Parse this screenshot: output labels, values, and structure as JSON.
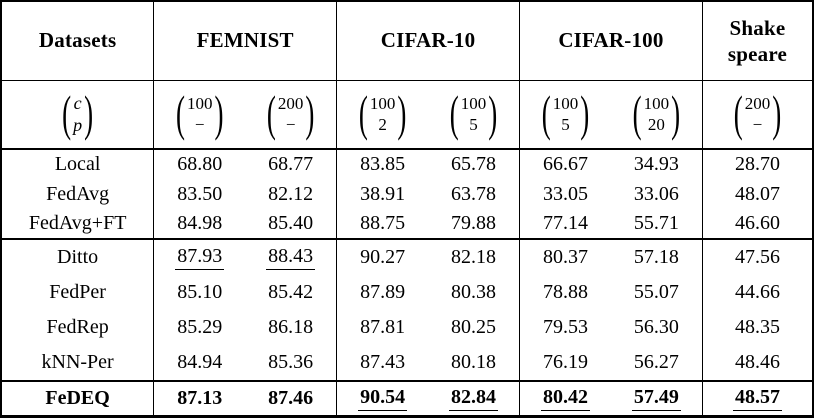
{
  "meta": {
    "background": "#ffffff",
    "text_color": "#000000",
    "border_color": "#000000"
  },
  "table": {
    "corner_label": "Datasets",
    "header_groups": [
      {
        "label": "FEMNIST",
        "span": 2
      },
      {
        "label": "CIFAR-10",
        "span": 2
      },
      {
        "label": "CIFAR-100",
        "span": 2
      },
      {
        "label": "Shake\nspeare",
        "span": 1
      }
    ],
    "config_row": {
      "label_top": "c",
      "label_bottom": "p",
      "configs": [
        {
          "c": "100",
          "p": "−"
        },
        {
          "c": "200",
          "p": "−"
        },
        {
          "c": "100",
          "p": "2"
        },
        {
          "c": "100",
          "p": "5"
        },
        {
          "c": "100",
          "p": "5"
        },
        {
          "c": "100",
          "p": "20"
        },
        {
          "c": "200",
          "p": "−"
        }
      ]
    },
    "rows": [
      {
        "method": "Local",
        "values": [
          "68.80",
          "68.77",
          "83.85",
          "65.78",
          "66.67",
          "34.93",
          "28.70"
        ],
        "bold": false,
        "underline": [],
        "group": 1,
        "rule_above": false
      },
      {
        "method": "FedAvg",
        "values": [
          "83.50",
          "82.12",
          "38.91",
          "63.78",
          "33.05",
          "33.06",
          "48.07"
        ],
        "bold": false,
        "underline": [],
        "group": 1,
        "rule_above": false
      },
      {
        "method": "FedAvg+FT",
        "values": [
          "84.98",
          "85.40",
          "88.75",
          "79.88",
          "77.14",
          "55.71",
          "46.60"
        ],
        "bold": false,
        "underline": [],
        "group": 1,
        "rule_above": false
      },
      {
        "method": "Ditto",
        "values": [
          "87.93",
          "88.43",
          "90.27",
          "82.18",
          "80.37",
          "57.18",
          "47.56"
        ],
        "bold": false,
        "underline": [
          0,
          1
        ],
        "group": 2,
        "rule_above": true
      },
      {
        "method": "FedPer",
        "values": [
          "85.10",
          "85.42",
          "87.89",
          "80.38",
          "78.88",
          "55.07",
          "44.66"
        ],
        "bold": false,
        "underline": [],
        "group": 2,
        "rule_above": false
      },
      {
        "method": "FedRep",
        "values": [
          "85.29",
          "86.18",
          "87.81",
          "80.25",
          "79.53",
          "56.30",
          "48.35"
        ],
        "bold": false,
        "underline": [],
        "group": 2,
        "rule_above": false
      },
      {
        "method": "kNN-Per",
        "values": [
          "84.94",
          "85.36",
          "87.43",
          "80.18",
          "76.19",
          "56.27",
          "48.46"
        ],
        "bold": false,
        "underline": [],
        "group": 2,
        "rule_above": false
      },
      {
        "method": "FeDEQ",
        "values": [
          "87.13",
          "87.46",
          "90.54",
          "82.84",
          "80.42",
          "57.49",
          "48.57"
        ],
        "bold": true,
        "underline": [
          2,
          3,
          4,
          5,
          6
        ],
        "group": 2,
        "rule_above": true
      }
    ]
  }
}
